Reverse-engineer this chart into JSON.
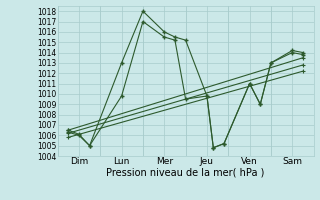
{
  "title": "",
  "xlabel": "Pression niveau de la mer( hPa )",
  "ylim": [
    1004,
    1018.5
  ],
  "yticks": [
    1004,
    1005,
    1006,
    1007,
    1008,
    1009,
    1010,
    1011,
    1012,
    1013,
    1014,
    1015,
    1016,
    1017,
    1018
  ],
  "x_labels": [
    "Dim",
    "Lun",
    "Mer",
    "Jeu",
    "Ven",
    "Sam"
  ],
  "x_tick_positions": [
    1,
    3,
    5,
    7,
    9,
    11
  ],
  "x_vline_positions": [
    0,
    2,
    4,
    6,
    8,
    10,
    12
  ],
  "background_color": "#cbe8e8",
  "grid_color": "#a8cccc",
  "line_color": "#2d5a2d",
  "lines": [
    {
      "x": [
        0.5,
        1.0,
        1.5,
        3.0,
        4.0,
        5.0,
        5.5,
        6.0,
        7.0,
        7.3,
        7.8,
        9.0,
        9.5,
        10.0,
        11.0,
        11.5
      ],
      "y": [
        1006.5,
        1006.1,
        1005.0,
        1013.0,
        1018.0,
        1016.0,
        1015.5,
        1015.2,
        1009.8,
        1004.8,
        1005.2,
        1011.0,
        1009.0,
        1013.0,
        1014.2,
        1014.0
      ]
    },
    {
      "x": [
        0.5,
        1.0,
        1.5,
        3.0,
        4.0,
        5.0,
        5.5,
        6.0,
        7.0,
        7.3,
        7.8,
        9.0,
        9.5,
        10.0,
        11.0,
        11.5
      ],
      "y": [
        1006.3,
        1006.0,
        1005.0,
        1009.8,
        1017.0,
        1015.5,
        1015.2,
        1009.5,
        1009.8,
        1004.8,
        1005.2,
        1011.0,
        1009.0,
        1013.0,
        1014.0,
        1013.8
      ]
    },
    {
      "x": [
        0.5,
        11.5
      ],
      "y": [
        1006.5,
        1013.5
      ]
    },
    {
      "x": [
        0.5,
        11.5
      ],
      "y": [
        1006.2,
        1012.8
      ]
    },
    {
      "x": [
        0.5,
        11.5
      ],
      "y": [
        1005.8,
        1012.2
      ]
    }
  ]
}
